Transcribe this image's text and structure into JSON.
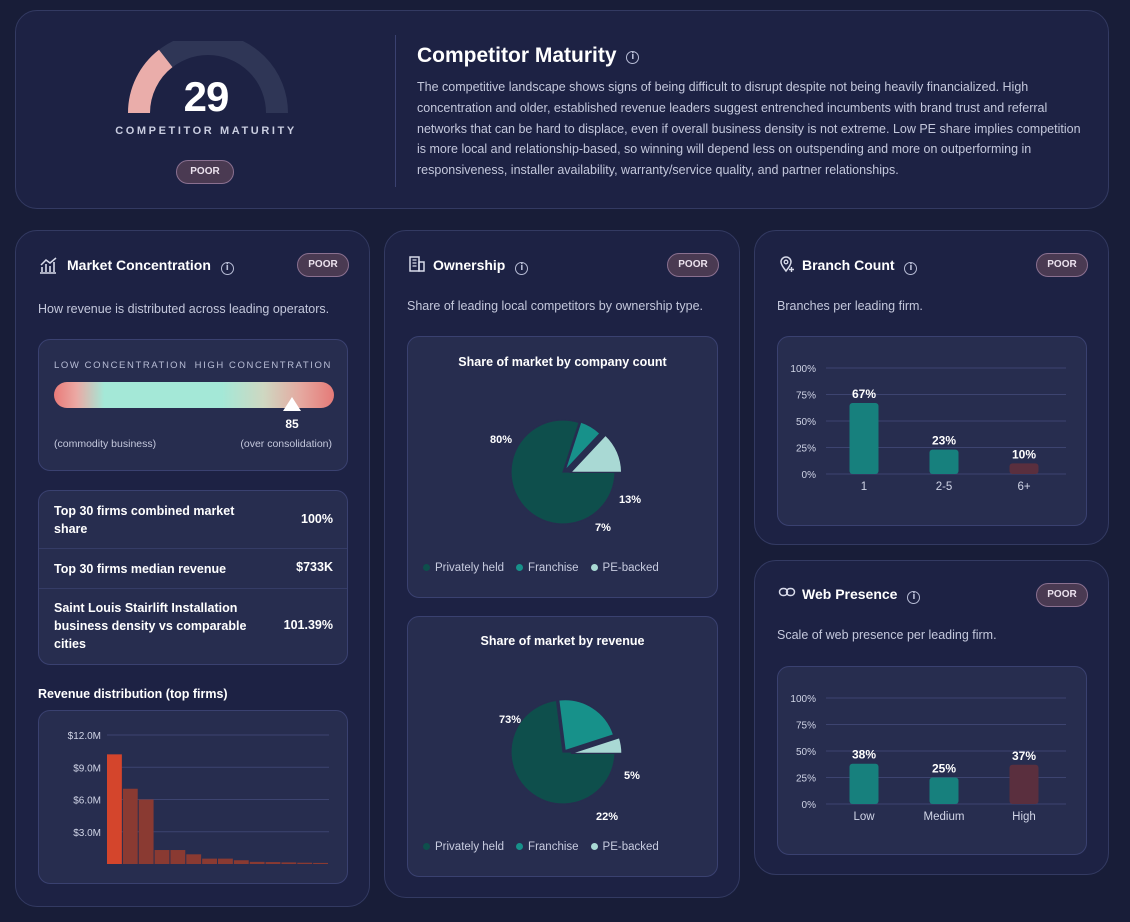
{
  "maturity": {
    "score": "29",
    "gauge_label": "COMPETITOR MATURITY",
    "rating": "POOR",
    "score_fraction": 0.29,
    "title": "Competitor Maturity",
    "description": "The competitive landscape shows signs of being difficult to disrupt despite not being heavily financialized. High concentration and older, established revenue leaders suggest entrenched incumbents with brand trust and referral networks that can be hard to displace, even if overall business density is not extreme. Low PE share implies competition is more local and relationship-based, so winning will depend less on outspending and more on outperforming in responsiveness, installer availability, warranty/service quality, and partner relationships."
  },
  "market_concentration": {
    "title": "Market Concentration",
    "badge": "POOR",
    "description": "How revenue is distributed across leading operators.",
    "scale": {
      "low_label": "LOW CONCENTRATION",
      "high_label": "HIGH CONCENTRATION",
      "low_caption": "(commodity business)",
      "high_caption": "(over consolidation)",
      "value": 85,
      "value_label": "85"
    },
    "stats": [
      {
        "label": "Top 30 firms combined market share",
        "value": "100%"
      },
      {
        "label": "Top 30 firms median revenue",
        "value": "$733K"
      },
      {
        "label": "Saint Louis Stairlift Installation business density vs comparable cities",
        "value": "101.39%"
      }
    ],
    "revenue_title": "Revenue distribution (top firms)"
  },
  "ownership": {
    "title": "Ownership",
    "badge": "POOR",
    "description": "Share of leading local competitors by ownership type.",
    "legend": [
      "Privately held",
      "Franchise",
      "PE-backed"
    ],
    "colors": [
      "#0e4f4c",
      "#17918a",
      "#a9d9d4"
    ],
    "count_chart_title": "Share of market by company count",
    "revenue_chart_title": "Share of market by revenue"
  },
  "branch_count": {
    "title": "Branch Count",
    "badge": "POOR",
    "description": "Branches per leading firm."
  },
  "web_presence": {
    "title": "Web Presence",
    "badge": "POOR",
    "description": "Scale of web presence per leading firm."
  },
  "chart_data": [
    {
      "type": "bar",
      "title": "Revenue distribution (top firms)",
      "yticks": [
        "$3.0M",
        "$6.0M",
        "$9.0M",
        "$12.0M"
      ],
      "ylim": [
        0,
        12000000
      ],
      "values": [
        10200000,
        7000000,
        6000000,
        1300000,
        1300000,
        900000,
        500000,
        500000,
        350000,
        200000,
        180000,
        150000,
        120000,
        100000
      ],
      "color_top": "#d4452c",
      "color_rest": "#8a3a32"
    },
    {
      "type": "pie",
      "title": "Share of market by company count",
      "categories": [
        "Privately held",
        "Franchise",
        "PE-backed"
      ],
      "values": [
        80,
        7,
        13
      ],
      "labels": [
        "80%",
        "7%",
        "13%"
      ]
    },
    {
      "type": "pie",
      "title": "Share of market by revenue",
      "categories": [
        "Privately held",
        "Franchise",
        "PE-backed"
      ],
      "values": [
        73,
        22,
        5
      ],
      "labels": [
        "73%",
        "22%",
        "5%"
      ]
    },
    {
      "type": "bar",
      "title": "Branch Count",
      "categories": [
        "1",
        "2-5",
        "6+"
      ],
      "values": [
        67,
        23,
        10
      ],
      "labels": [
        "67%",
        "23%",
        "10%"
      ],
      "yticks": [
        "0%",
        "25%",
        "50%",
        "75%",
        "100%"
      ],
      "ylim": [
        0,
        100
      ],
      "colors": [
        "#17807d",
        "#17807d",
        "#5a2f3e"
      ]
    },
    {
      "type": "bar",
      "title": "Web Presence",
      "categories": [
        "Low",
        "Medium",
        "High"
      ],
      "values": [
        38,
        25,
        37
      ],
      "labels": [
        "38%",
        "25%",
        "37%"
      ],
      "yticks": [
        "0%",
        "25%",
        "50%",
        "75%",
        "100%"
      ],
      "ylim": [
        0,
        100
      ],
      "colors": [
        "#17807d",
        "#17807d",
        "#5a2f3e"
      ]
    }
  ]
}
